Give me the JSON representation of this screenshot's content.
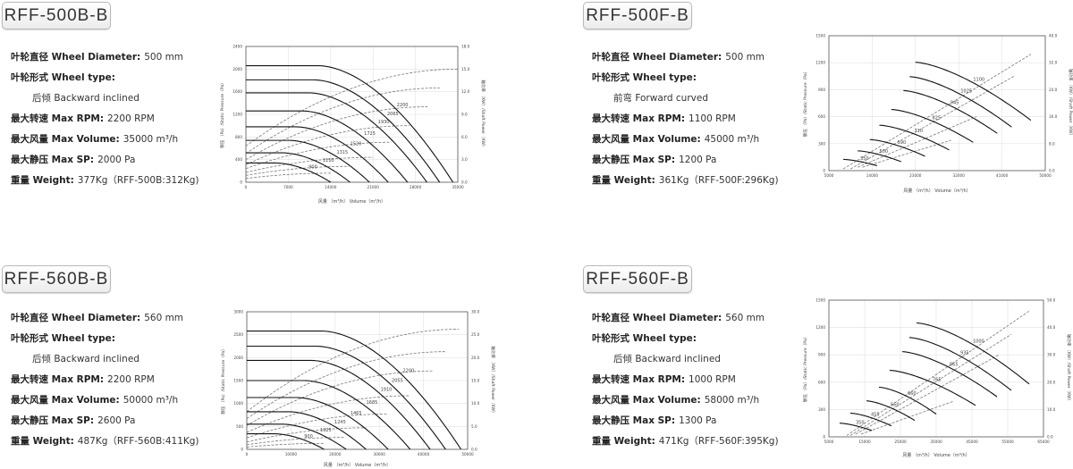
{
  "panels": [
    {
      "title": "RFF-500B-B",
      "specs": [
        {
          "label": "叶轮直径 Wheel Diameter:",
          "value": "500 mm"
        },
        {
          "label": "叶轮形式 Wheel type:",
          "value": ""
        },
        {
          "label": "",
          "value": "后倾 Backward inclined",
          "indent": true
        },
        {
          "label": "最大转速 Max RPM:",
          "value": "2200 RPM"
        },
        {
          "label": "最大风量 Max Volume:",
          "value": "35000 m³/h"
        },
        {
          "label": "最大静压 Max SP:",
          "value": "2000 Pa"
        },
        {
          "label": "重量 Weight:",
          "value": "377Kg（RFF-500B:312Kg)"
        }
      ]
    },
    {
      "title": "RFF-500F-B",
      "specs": [
        {
          "label": "叶轮直径 Wheel Diameter:",
          "value": "500 mm"
        },
        {
          "label": "叶轮形式 Wheel type:",
          "value": ""
        },
        {
          "label": "",
          "value": "前弯 Forward curved",
          "indent": true
        },
        {
          "label": "最大转速 Max RPM:",
          "value": "1100 RPM"
        },
        {
          "label": "最大风量 Max Volume:",
          "value": "45000 m³/h"
        },
        {
          "label": "最大静压 Max SP:",
          "value": "1200 Pa"
        },
        {
          "label": "重量 Weight:",
          "value": "361Kg（RFF-500F:296Kg)"
        }
      ]
    },
    {
      "title": "RFF-560B-B",
      "specs": [
        {
          "label": "叶轮直径 Wheel Diameter:",
          "value": "560 mm"
        },
        {
          "label": "叶轮形式 Wheel type:",
          "value": ""
        },
        {
          "label": "",
          "value": "后倾 Backward inclined",
          "indent": true
        },
        {
          "label": "最大转速 Max RPM:",
          "value": "2200 RPM"
        },
        {
          "label": "最大风量 Max Volume:",
          "value": "50000 m³/h"
        },
        {
          "label": "最大静压 Max SP:",
          "value": "2600 Pa"
        },
        {
          "label": "重量 Weight:",
          "value": "487Kg（RFF-560B:411Kg)"
        }
      ]
    },
    {
      "title": "RFF-560F-B",
      "specs": [
        {
          "label": "叶轮直径 Wheel Diameter:",
          "value": "560 mm"
        },
        {
          "label": "叶轮形式 Wheel type:",
          "value": ""
        },
        {
          "label": "",
          "value": "后倾 Backward inclined",
          "indent": true
        },
        {
          "label": "最大转速 Max RPM:",
          "value": "1000 RPM"
        },
        {
          "label": "最大风量 Max Volume:",
          "value": "58000 m³/h"
        },
        {
          "label": "最大静压 Max SP:",
          "value": "1300 Pa"
        },
        {
          "label": "重量 Weight:",
          "value": "471Kg（RFF-560F:395Kg)"
        }
      ]
    }
  ],
  "chart_data": [
    {
      "type": "line",
      "fan_curve": "backward",
      "xlabel": "风量 （m³/h） Volume（m³/h）",
      "ylabel": "静压 （Pa）/Static Pressure（Pa）",
      "y2label": "轴功率 （KW）/Shaft Power（KW）",
      "xlim": [
        0,
        35000
      ],
      "xstep": 7000,
      "ylim": [
        0,
        2400
      ],
      "ystep": 400,
      "y2lim": [
        0,
        18
      ],
      "y2step": 3,
      "y2decimals": 1,
      "grid": true,
      "pressure_series": [
        {
          "rpm": "900",
          "shutoff_pa": 340,
          "max_volume": 14000
        },
        {
          "rpm": "1110",
          "shutoff_pa": 520,
          "max_volume": 17200
        },
        {
          "rpm": "1315",
          "shutoff_pa": 740,
          "max_volume": 20400
        },
        {
          "rpm": "1520",
          "shutoff_pa": 980,
          "max_volume": 23500
        },
        {
          "rpm": "1725",
          "shutoff_pa": 1260,
          "max_volume": 26700
        },
        {
          "rpm": "1930",
          "shutoff_pa": 1580,
          "max_volume": 29900
        },
        {
          "rpm": "2065",
          "shutoff_pa": 1810,
          "max_volume": 32000
        },
        {
          "rpm": "2200",
          "shutoff_pa": 2060,
          "max_volume": 34200
        }
      ],
      "power_series": [
        {
          "start_kw": 0.5,
          "end_kw": 1.2,
          "end_volume": 14000
        },
        {
          "start_kw": 0.9,
          "end_kw": 2.1,
          "end_volume": 17000
        },
        {
          "start_kw": 1.3,
          "end_kw": 3.3,
          "end_volume": 21000
        },
        {
          "start_kw": 1.8,
          "end_kw": 5.3,
          "end_volume": 24000
        },
        {
          "start_kw": 2.3,
          "end_kw": 7.5,
          "end_volume": 27000
        },
        {
          "start_kw": 3.0,
          "end_kw": 10.0,
          "end_volume": 30000
        },
        {
          "start_kw": 3.8,
          "end_kw": 12.5,
          "end_volume": 32000
        },
        {
          "start_kw": 4.8,
          "end_kw": 15.0,
          "end_volume": 35000
        }
      ]
    },
    {
      "type": "line",
      "fan_curve": "forward",
      "xlabel": "风量 （m³/h） Volume（m³/h）",
      "ylabel": "静压 （Pa）/Static Pressure（Pa）",
      "y2label": "轴功率 （KW）/Shaft Power（KW）",
      "xlim": [
        5000,
        50000
      ],
      "xstep": 9000,
      "ylim": [
        0,
        1500
      ],
      "ystep": 300,
      "y2lim": [
        0,
        40
      ],
      "y2step": 8,
      "y2decimals": 1,
      "grid": true,
      "pressure_series": [
        {
          "rpm": "350",
          "start": [
            8000,
            125
          ],
          "end": [
            15000,
            55
          ]
        },
        {
          "rpm": "500",
          "start": [
            11000,
            220
          ],
          "end": [
            20000,
            100
          ]
        },
        {
          "rpm": "590",
          "start": [
            13500,
            345
          ],
          "end": [
            25000,
            160
          ]
        },
        {
          "rpm": "710",
          "start": [
            15500,
            505
          ],
          "end": [
            30000,
            230
          ]
        },
        {
          "rpm": "825",
          "start": [
            18000,
            680
          ],
          "end": [
            35000,
            315
          ]
        },
        {
          "rpm": "945",
          "start": [
            20500,
            890
          ],
          "end": [
            40000,
            415
          ]
        },
        {
          "rpm": "1025",
          "start": [
            21800,
            1045
          ],
          "end": [
            43000,
            485
          ]
        },
        {
          "rpm": "1100",
          "start": [
            23000,
            1205
          ],
          "end": [
            47000,
            560
          ]
        }
      ],
      "power_series": [
        {
          "start": [
            8000,
            0.5
          ],
          "end": [
            47000,
            34.5
          ]
        },
        {
          "start": [
            9500,
            0.5
          ],
          "end": [
            43500,
            28
          ]
        },
        {
          "start": [
            11000,
            1
          ],
          "end": [
            35700,
            16
          ]
        },
        {
          "start": [
            12000,
            1
          ],
          "end": [
            30400,
            9
          ]
        }
      ]
    },
    {
      "type": "line",
      "fan_curve": "backward",
      "xlabel": "风量 （m³/h） Volume（m³/h）",
      "ylabel": "静压 （Pa）/Static Pressure（Pa）",
      "y2label": "轴功率 （KW）/Shaft Power（KW）",
      "xlim": [
        0,
        50000
      ],
      "xstep": 10000,
      "ylim": [
        0,
        3000
      ],
      "ystep": 500,
      "y2lim": [
        0,
        30
      ],
      "y2step": 5,
      "y2decimals": 1,
      "grid": true,
      "pressure_series": [
        {
          "rpm": "900",
          "shutoff_pa": 340,
          "max_volume": 17500
        },
        {
          "rpm": "1025",
          "shutoff_pa": 550,
          "max_volume": 22500
        },
        {
          "rpm": "1245",
          "shutoff_pa": 820,
          "max_volume": 27000
        },
        {
          "rpm": "1465",
          "shutoff_pa": 1130,
          "max_volume": 32000
        },
        {
          "rpm": "1685",
          "shutoff_pa": 1500,
          "max_volume": 37000
        },
        {
          "rpm": "1910",
          "shutoff_pa": 1940,
          "max_volume": 41500
        },
        {
          "rpm": "2055",
          "shutoff_pa": 2250,
          "max_volume": 45000
        },
        {
          "rpm": "2200",
          "shutoff_pa": 2580,
          "max_volume": 48500
        }
      ],
      "power_series": [
        {
          "start_kw": 0.5,
          "end_kw": 1.3,
          "end_volume": 17500
        },
        {
          "start_kw": 1.0,
          "end_kw": 2.6,
          "end_volume": 22000
        },
        {
          "start_kw": 1.6,
          "end_kw": 4.7,
          "end_volume": 27000
        },
        {
          "start_kw": 2.5,
          "end_kw": 7.7,
          "end_volume": 32000
        },
        {
          "start_kw": 3.7,
          "end_kw": 11.7,
          "end_volume": 37000
        },
        {
          "start_kw": 5.2,
          "end_kw": 17.1,
          "end_volume": 42000
        },
        {
          "start_kw": 6.7,
          "end_kw": 21.3,
          "end_volume": 45000
        },
        {
          "start_kw": 8.2,
          "end_kw": 26.2,
          "end_volume": 48000
        }
      ]
    },
    {
      "type": "line",
      "fan_curve": "forward",
      "xlabel": "风量 （m³/h） Volume（m³/h）",
      "ylabel": "静压 （Pa）/Static Pressure（Pa）",
      "y2label": "轴功率 （KW）/Shaft Power（KW）",
      "xlim": [
        5000,
        65000
      ],
      "xstep": 10000,
      "ylim": [
        0,
        1500
      ],
      "ystep": 300,
      "y2lim": [
        0,
        50
      ],
      "y2step": 10,
      "y2decimals": 1,
      "grid": true,
      "pressure_series": [
        {
          "rpm": "350",
          "start": [
            8000,
            150
          ],
          "end": [
            17000,
            70
          ]
        },
        {
          "rpm": "455",
          "start": [
            11000,
            260
          ],
          "end": [
            22500,
            120
          ]
        },
        {
          "rpm": "560",
          "start": [
            15500,
            395
          ],
          "end": [
            29000,
            180
          ]
        },
        {
          "rpm": "660",
          "start": [
            19000,
            545
          ],
          "end": [
            35000,
            250
          ]
        },
        {
          "rpm": "765",
          "start": [
            22000,
            730
          ],
          "end": [
            46000,
            345
          ]
        },
        {
          "rpm": "865",
          "start": [
            25500,
            935
          ],
          "end": [
            52000,
            440
          ]
        },
        {
          "rpm": "935",
          "start": [
            27500,
            1090
          ],
          "end": [
            56000,
            510
          ]
        },
        {
          "rpm": "1000",
          "start": [
            29500,
            1250
          ],
          "end": [
            61000,
            580
          ]
        }
      ],
      "power_series": [
        {
          "start": [
            10000,
            0.5
          ],
          "end": [
            61000,
            46
          ]
        },
        {
          "start": [
            11000,
            0.5
          ],
          "end": [
            56000,
            37.5
          ]
        },
        {
          "start": [
            12500,
            1
          ],
          "end": [
            52500,
            30
          ]
        },
        {
          "start": [
            14000,
            1
          ],
          "end": [
            39800,
            13
          ]
        }
      ]
    }
  ]
}
